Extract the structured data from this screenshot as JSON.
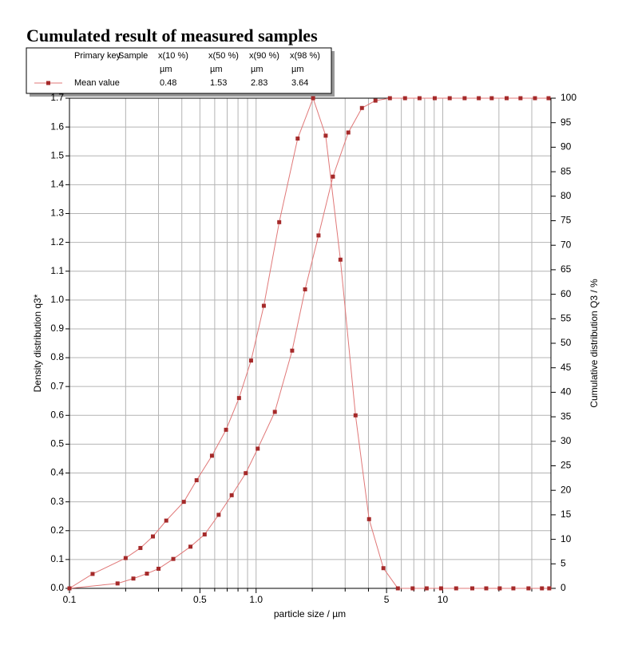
{
  "chart_data": {
    "type": "line",
    "title": "Cumulated result of measured samples",
    "xlabel": "particle size / µm",
    "ylabel": "Density distribution q3*",
    "y2label": "Cumulative distribution Q3 / %",
    "xscale": "log",
    "xlim": [
      0.1,
      38
    ],
    "xticks": [
      0.1,
      0.5,
      {
        "value": 1,
        "label": "1.0"
      },
      5,
      10
    ],
    "xgrid": [
      0.2,
      0.3,
      0.4,
      0.6,
      0.7,
      0.8,
      0.9,
      2,
      3,
      4,
      6,
      7,
      8,
      9,
      20,
      30
    ],
    "ylim": [
      0,
      1.7
    ],
    "yticks": [
      {
        "value": 0,
        "label": "0.0"
      },
      0.1,
      0.2,
      0.3,
      0.4,
      0.5,
      0.6,
      0.7,
      0.8,
      0.9,
      {
        "value": 1,
        "label": "1.0"
      },
      1.1,
      1.2,
      1.3,
      1.4,
      1.5,
      1.6,
      1.7
    ],
    "y2lim": [
      0,
      100
    ],
    "y2ticks": [
      0,
      5,
      10,
      15,
      20,
      25,
      30,
      35,
      40,
      45,
      50,
      55,
      60,
      65,
      70,
      75,
      80,
      85,
      90,
      95,
      100
    ],
    "grid": true,
    "line_color": "#e07878",
    "marker_color": "#a52a2a",
    "series": [
      {
        "color": "#e07878",
        "x": [
          0.1,
          0.133,
          0.2,
          0.24,
          0.28,
          0.33,
          0.41,
          0.48,
          0.58,
          0.69,
          0.81,
          0.94,
          1.1,
          1.33,
          1.67,
          2.02,
          2.36,
          2.83,
          3.41,
          4.03,
          4.81,
          5.75,
          6.9,
          8.2,
          9.8,
          11.8,
          14.4,
          17.1,
          20.2,
          23.9,
          28.8,
          34,
          37.2
        ],
        "values": [
          0,
          0.05,
          0.105,
          0.14,
          0.18,
          0.235,
          0.3,
          0.375,
          0.46,
          0.55,
          0.66,
          0.79,
          0.98,
          1.27,
          1.56,
          1.7,
          1.57,
          1.14,
          0.6,
          0.24,
          0.07,
          0,
          0,
          0,
          0,
          0,
          0,
          0,
          0,
          0,
          0,
          0,
          0
        ]
      },
      {
        "color": "#e07878",
        "axis": "y2",
        "x": [
          0.1,
          0.181,
          0.22,
          0.26,
          0.3,
          0.36,
          0.445,
          0.53,
          0.63,
          0.74,
          0.88,
          1.02,
          1.26,
          1.56,
          1.83,
          2.16,
          2.58,
          3.12,
          3.69,
          4.36,
          5.21,
          6.28,
          7.51,
          9.06,
          10.9,
          13.1,
          15.6,
          18.3,
          22,
          26.1,
          31.2,
          36.9
        ],
        "values": [
          0,
          1,
          2,
          3,
          4,
          6,
          8.5,
          11,
          15,
          19,
          23.5,
          28.5,
          36,
          48.5,
          61,
          72,
          84,
          93,
          98,
          99.5,
          100,
          100,
          100,
          100,
          100,
          100,
          100,
          100,
          100,
          100,
          100,
          100
        ]
      }
    ],
    "legend_table": {
      "header": [
        "Primary key",
        "Sample",
        "x(10 %)",
        "x(50 %)",
        "x(90 %)",
        "x(98 %)"
      ],
      "units": [
        "µm",
        "µm",
        "µm",
        "µm"
      ],
      "rows": [
        [
          "Mean value",
          0.48,
          1.53,
          2.83,
          3.64
        ]
      ]
    }
  }
}
